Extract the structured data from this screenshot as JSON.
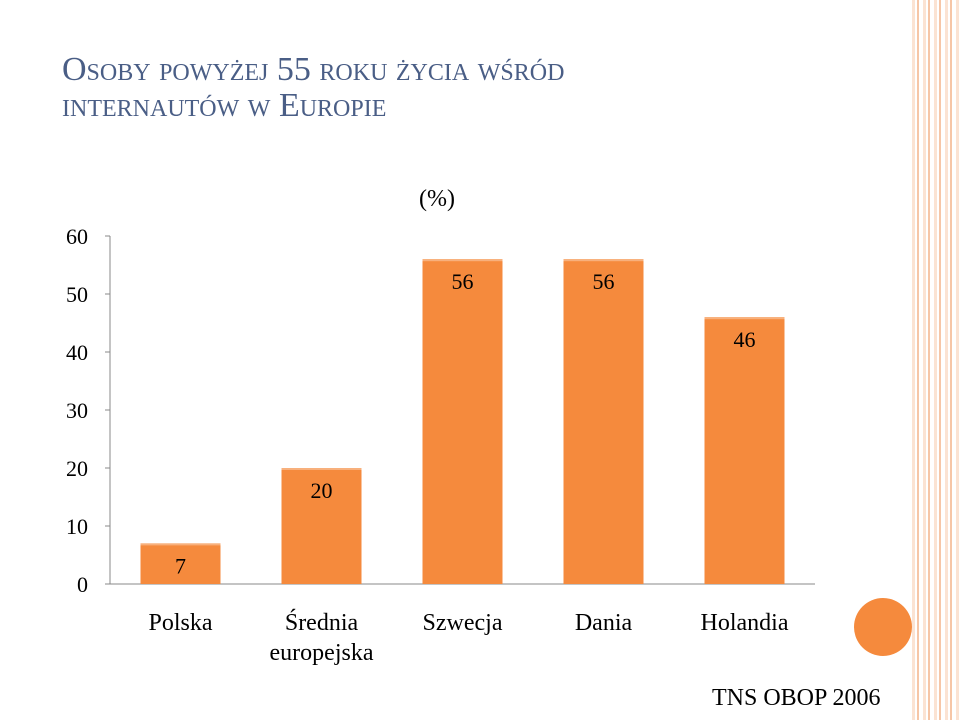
{
  "slide": {
    "title_line1": "Osoby powyżej 55 roku życia wśród",
    "title_line2": "internautów w Europie",
    "source": "TNS OBOP 2006"
  },
  "colors": {
    "bar": "#f58a3d",
    "title": "#4a5e86",
    "accent_circle": "#f58a3d"
  },
  "chart_data": {
    "type": "bar",
    "title": "(%)",
    "categories": [
      "Polska",
      "Średnia europejska",
      "Szwecja",
      "Dania",
      "Holandia"
    ],
    "category_lines": [
      [
        "Polska"
      ],
      [
        "Średnia",
        "europejska"
      ],
      [
        "Szwecja"
      ],
      [
        "Dania"
      ],
      [
        "Holandia"
      ]
    ],
    "values": [
      7,
      20,
      56,
      56,
      46
    ],
    "data_labels": [
      "7",
      "20",
      "56",
      "56",
      "46"
    ],
    "ylim": [
      0,
      60
    ],
    "yticks": [
      0,
      10,
      20,
      30,
      40,
      50,
      60
    ],
    "grid": false,
    "xlabel": "",
    "ylabel": ""
  }
}
